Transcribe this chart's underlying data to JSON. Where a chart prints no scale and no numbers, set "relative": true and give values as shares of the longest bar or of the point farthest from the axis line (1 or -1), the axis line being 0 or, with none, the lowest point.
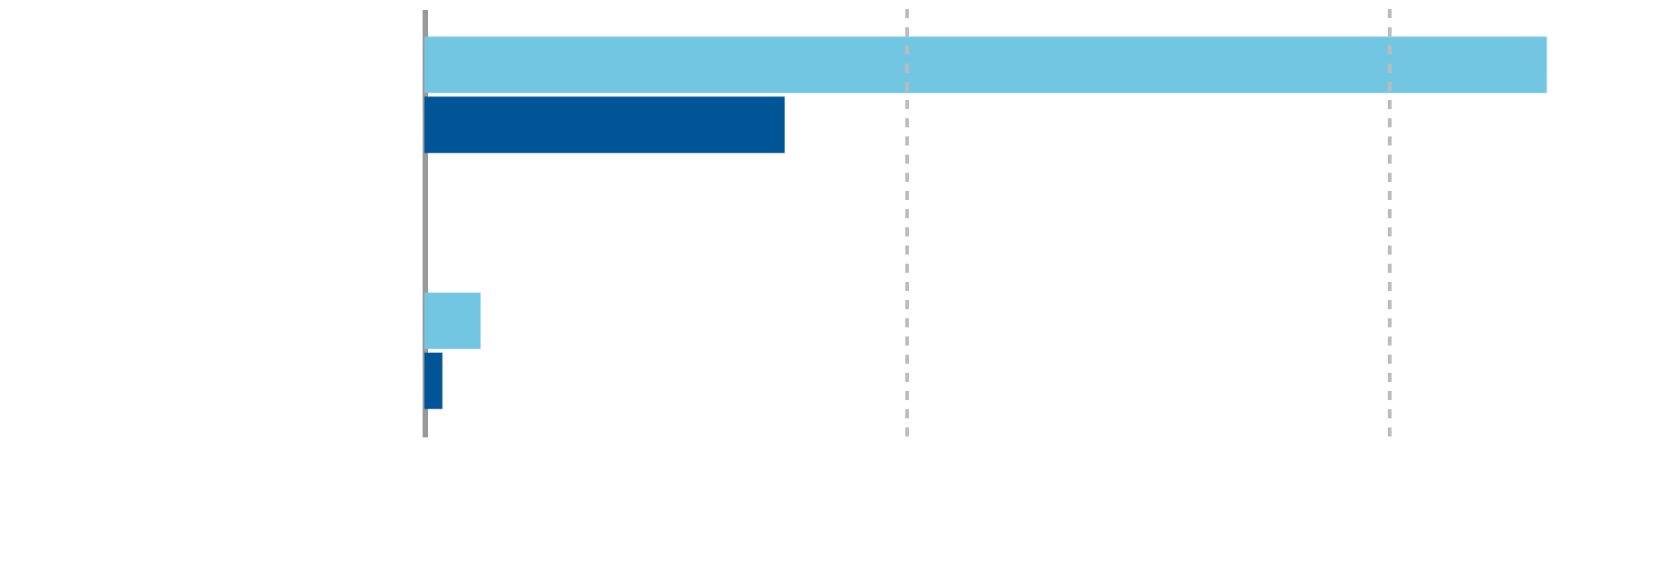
{
  "chart_data": {
    "type": "bar",
    "orientation": "horizontal",
    "relative": true,
    "categories": [
      null,
      null
    ],
    "series": [
      {
        "color": "#73c6e1",
        "values": [
          1,
          0.05
        ]
      },
      {
        "color": "#005596",
        "values": [
          0.321,
          0.016
        ]
      }
    ],
    "ref_lines": [
      {
        "axis": "x",
        "value": 0.43,
        "color": "#bbbbbb",
        "line_style": "dashed"
      },
      {
        "axis": "x",
        "value": 0.86,
        "color": "#bbbbbb",
        "line_style": "dashed"
      }
    ]
  }
}
